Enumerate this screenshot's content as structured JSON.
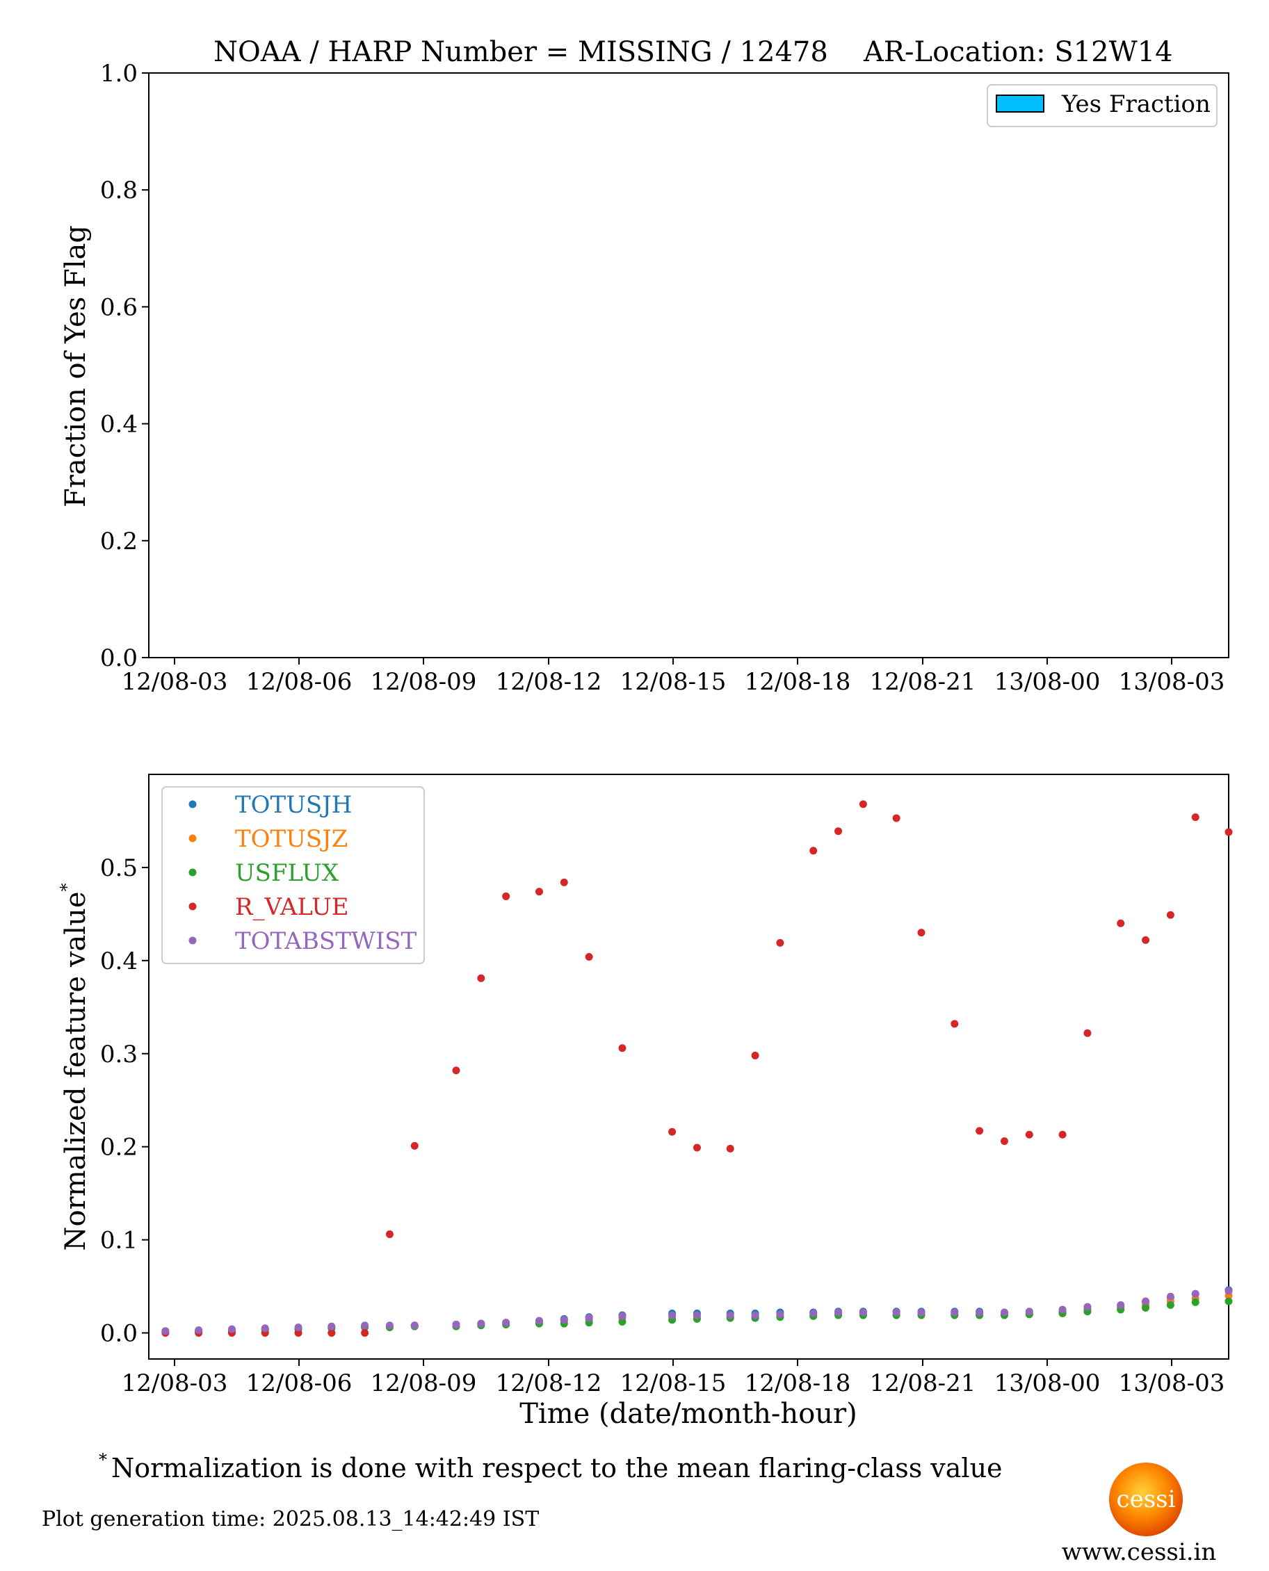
{
  "chart_data": [
    {
      "type": "bar",
      "title_left": "NOAA / HARP Number = MISSING / 12478",
      "title_right": "AR-Location: S12W14",
      "ylabel": "Fraction of Yes Flag",
      "xlabel": "",
      "ylim": [
        0,
        1.0
      ],
      "yticks": [
        "0.0",
        "0.2",
        "0.4",
        "0.6",
        "0.8",
        "1.0"
      ],
      "xticks": [
        "12/08-03",
        "12/08-06",
        "12/08-09",
        "12/08-12",
        "12/08-15",
        "12/08-18",
        "12/08-21",
        "13/08-00",
        "13/08-03"
      ],
      "legend": {
        "placement": "top-right",
        "entries": [
          "Yes Fraction"
        ]
      },
      "series": [
        {
          "name": "Yes Fraction",
          "color": "#00bfff",
          "values": []
        }
      ],
      "grid": false
    },
    {
      "type": "scatter",
      "xlabel": "Time (date/month-hour)",
      "ylabel": "Normalized feature value",
      "ylabel_superscript": "*",
      "ylim": [
        -0.028,
        0.6
      ],
      "yticks": [
        "0.0",
        "0.1",
        "0.2",
        "0.3",
        "0.4",
        "0.5"
      ],
      "xticks": [
        "12/08-03",
        "12/08-06",
        "12/08-09",
        "12/08-12",
        "12/08-15",
        "12/08-18",
        "12/08-21",
        "13/08-00",
        "13/08-03"
      ],
      "x_unit": "hours from 12/08-00",
      "xlim": [
        2.4,
        28.4
      ],
      "legend": {
        "placement": "top-left"
      },
      "grid": false,
      "x": [
        2.0,
        2.8,
        3.6,
        4.4,
        5.2,
        6.0,
        6.8,
        7.6,
        8.2,
        8.8,
        9.8,
        10.4,
        11.0,
        11.8,
        12.4,
        13.0,
        13.8,
        15.0,
        15.6,
        16.4,
        17.0,
        17.6,
        18.4,
        19.0,
        19.6,
        20.4,
        21.0,
        21.8,
        22.4,
        23.0,
        23.6,
        24.4,
        25.0,
        25.8,
        26.4,
        27.0,
        27.6,
        28.4
      ],
      "series": [
        {
          "name": "TOTUSJH",
          "color": "#1f77b4",
          "values": [
            0.001,
            0.002,
            0.002,
            0.003,
            0.004,
            0.005,
            0.006,
            0.007,
            0.007,
            0.008,
            0.009,
            0.01,
            0.011,
            0.013,
            0.015,
            0.017,
            0.019,
            0.021,
            0.021,
            0.021,
            0.021,
            0.022,
            0.022,
            0.023,
            0.023,
            0.023,
            0.023,
            0.023,
            0.023,
            0.022,
            0.022,
            0.023,
            0.026,
            0.028,
            0.033,
            0.038,
            0.042,
            0.046
          ]
        },
        {
          "name": "TOTUSJZ",
          "color": "#ff7f0e",
          "values": [
            0.001,
            0.002,
            0.002,
            0.003,
            0.004,
            0.005,
            0.006,
            0.007,
            0.007,
            0.008,
            0.009,
            0.01,
            0.011,
            0.012,
            0.013,
            0.014,
            0.016,
            0.017,
            0.017,
            0.017,
            0.017,
            0.018,
            0.019,
            0.02,
            0.02,
            0.02,
            0.02,
            0.02,
            0.02,
            0.02,
            0.02,
            0.021,
            0.024,
            0.026,
            0.03,
            0.034,
            0.037,
            0.04
          ]
        },
        {
          "name": "USFLUX",
          "color": "#2ca02c",
          "values": [
            0.001,
            0.001,
            0.001,
            0.002,
            0.003,
            0.004,
            0.005,
            0.006,
            0.006,
            0.007,
            0.007,
            0.008,
            0.009,
            0.01,
            0.01,
            0.011,
            0.012,
            0.014,
            0.015,
            0.016,
            0.016,
            0.017,
            0.018,
            0.019,
            0.019,
            0.019,
            0.019,
            0.019,
            0.019,
            0.019,
            0.02,
            0.021,
            0.023,
            0.025,
            0.027,
            0.03,
            0.033,
            0.034
          ]
        },
        {
          "name": "R_VALUE",
          "color": "#d62728",
          "values": [
            0.0,
            0.0,
            0.0,
            0.0,
            0.0,
            0.0,
            0.0,
            0.0,
            0.106,
            0.201,
            0.282,
            0.381,
            0.469,
            0.474,
            0.484,
            0.404,
            0.306,
            0.216,
            0.199,
            0.198,
            0.298,
            0.419,
            0.518,
            0.539,
            0.568,
            0.553,
            0.43,
            0.332,
            0.217,
            0.206,
            0.213,
            0.213,
            0.322,
            0.44,
            0.422,
            0.449,
            0.554,
            0.538
          ]
        },
        {
          "name": "TOTABSTWIST",
          "color": "#9467bd",
          "values": [
            0.001,
            0.002,
            0.003,
            0.004,
            0.005,
            0.006,
            0.007,
            0.008,
            0.008,
            0.008,
            0.009,
            0.01,
            0.011,
            0.013,
            0.014,
            0.016,
            0.018,
            0.019,
            0.019,
            0.019,
            0.019,
            0.02,
            0.021,
            0.022,
            0.022,
            0.022,
            0.022,
            0.022,
            0.022,
            0.022,
            0.023,
            0.025,
            0.028,
            0.03,
            0.034,
            0.039,
            0.042,
            0.045
          ]
        }
      ]
    }
  ],
  "footnote": {
    "marker": "*",
    "text": "Normalization is done with respect to the mean flaring-class value"
  },
  "generation_time": "Plot generation time: 2025.08.13_14:42:49 IST",
  "logo": {
    "text": "cessi",
    "url": "www.cessi.in"
  }
}
